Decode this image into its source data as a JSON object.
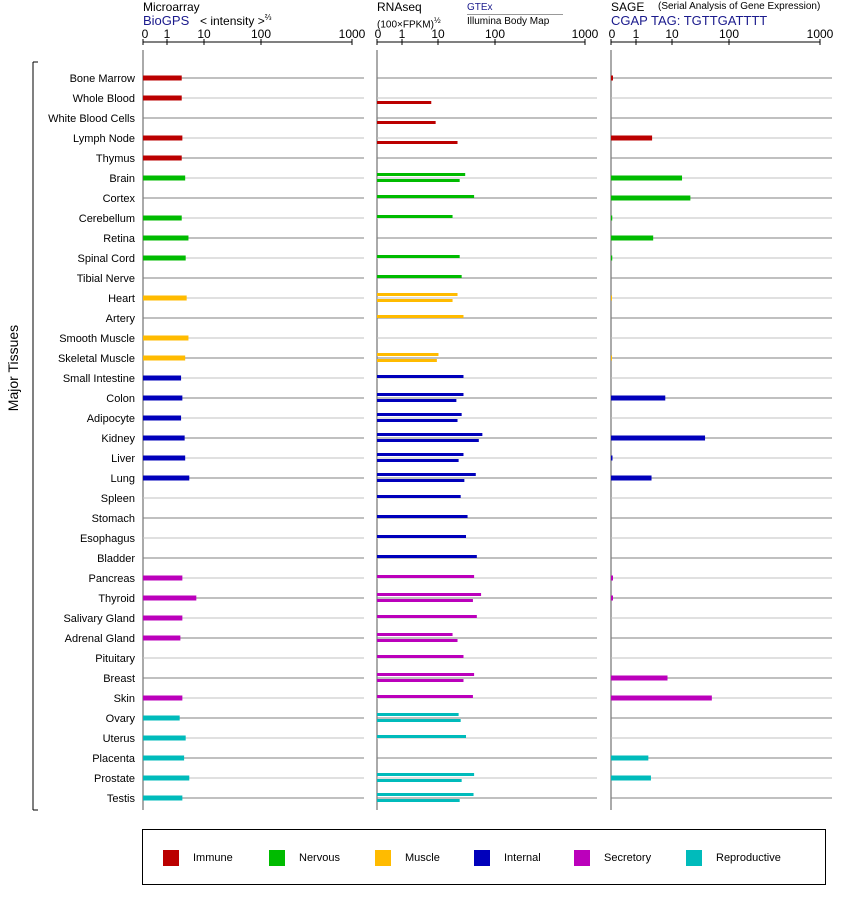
{
  "headers": {
    "microarray": {
      "title": "Microarray",
      "source": "BioGPS",
      "unit_prefix": "< intensity >",
      "unit_exp": "⅔"
    },
    "rnaseq": {
      "title": "RNAseq",
      "unit_prefix": "(100×FPKM)",
      "unit_exp": "½",
      "source_top": "GTEx",
      "source_bottom": "Illumina Body Map"
    },
    "sage": {
      "title": "SAGE",
      "subtitle": "(Serial Analysis of Gene Expression)",
      "tag": "CGAP TAG: TGTTGATTTT"
    }
  },
  "side_label": "Major Tissues",
  "colors": {
    "Immune": "#bb0000",
    "Nervous": "#00bb00",
    "Muscle": "#ffbb00",
    "Internal": "#0000bb",
    "Secretory": "#bb00bb",
    "Reproductive": "#00bbbb"
  },
  "legend": [
    {
      "label": "Immune",
      "color": "#bb0000"
    },
    {
      "label": "Nervous",
      "color": "#00bb00"
    },
    {
      "label": "Muscle",
      "color": "#ffbb00"
    },
    {
      "label": "Internal",
      "color": "#0000bb"
    },
    {
      "label": "Secretory",
      "color": "#bb00bb"
    },
    {
      "label": "Reproductive",
      "color": "#00bbbb"
    }
  ],
  "chart_data": {
    "type": "bar",
    "orientation": "horizontal",
    "axis_ticks": [
      "0",
      "1",
      "10",
      "100",
      "1000"
    ],
    "axis_tick_values": [
      0,
      1,
      10,
      100,
      1000
    ],
    "xlim": [
      0,
      1000
    ],
    "tissues": [
      {
        "name": "Bone Marrow",
        "group": "Immune",
        "microarray": 2.5,
        "rnaseq": [],
        "sage": 0.08
      },
      {
        "name": "Whole Blood",
        "group": "Immune",
        "microarray": 2.5,
        "rnaseq": [
          6.5
        ],
        "sage": null
      },
      {
        "name": "White Blood Cells",
        "group": "Immune",
        "microarray": null,
        "rnaseq": [
          8.6
        ],
        "sage": null
      },
      {
        "name": "Lymph Node",
        "group": "Immune",
        "microarray": 2.6,
        "rnaseq": [
          22
        ],
        "sage": 2.8
      },
      {
        "name": "Thymus",
        "group": "Immune",
        "microarray": 2.5,
        "rnaseq": [],
        "sage": null
      },
      {
        "name": "Brain",
        "group": "Nervous",
        "microarray": 3.1,
        "rnaseq": [
          30,
          24
        ],
        "sage": 15
      },
      {
        "name": "Cortex",
        "group": "Nervous",
        "microarray": null,
        "rnaseq": [
          43
        ],
        "sage": 21
      },
      {
        "name": "Cerebellum",
        "group": "Nervous",
        "microarray": 2.5,
        "rnaseq": [
          18
        ],
        "sage": 0.05
      },
      {
        "name": "Retina",
        "group": "Nervous",
        "microarray": 3.8,
        "rnaseq": [],
        "sage": 3.0
      },
      {
        "name": "Spinal Cord",
        "group": "Nervous",
        "microarray": 3.2,
        "rnaseq": [
          24
        ],
        "sage": 0.05
      },
      {
        "name": "Tibial Nerve",
        "group": "Nervous",
        "microarray": null,
        "rnaseq": [
          26
        ],
        "sage": null
      },
      {
        "name": "Heart",
        "group": "Muscle",
        "microarray": 3.4,
        "rnaseq": [
          22,
          18
        ],
        "sage": 0.03
      },
      {
        "name": "Artery",
        "group": "Muscle",
        "microarray": null,
        "rnaseq": [
          28
        ],
        "sage": null
      },
      {
        "name": "Smooth Muscle",
        "group": "Muscle",
        "microarray": 3.8,
        "rnaseq": [],
        "sage": null
      },
      {
        "name": "Skeletal Muscle",
        "group": "Muscle",
        "microarray": 3.1,
        "rnaseq": [
          10.2,
          9.3
        ],
        "sage": 0.03
      },
      {
        "name": "Small Intestine",
        "group": "Internal",
        "microarray": 2.4,
        "rnaseq": [
          28
        ],
        "sage": null
      },
      {
        "name": "Colon",
        "group": "Internal",
        "microarray": 2.6,
        "rnaseq": [
          28,
          21
        ],
        "sage": 6.5
      },
      {
        "name": "Adipocyte",
        "group": "Internal",
        "microarray": 2.4,
        "rnaseq": [
          26,
          22
        ],
        "sage": null
      },
      {
        "name": "Kidney",
        "group": "Internal",
        "microarray": 3.0,
        "rnaseq": [
          60,
          52
        ],
        "sage": 38
      },
      {
        "name": "Liver",
        "group": "Internal",
        "microarray": 3.1,
        "rnaseq": [
          28,
          23
        ],
        "sage": 0.06
      },
      {
        "name": "Lung",
        "group": "Internal",
        "microarray": 4.0,
        "rnaseq": [
          46,
          29
        ],
        "sage": 2.7
      },
      {
        "name": "Spleen",
        "group": "Internal",
        "microarray": null,
        "rnaseq": [
          25
        ],
        "sage": null
      },
      {
        "name": "Stomach",
        "group": "Internal",
        "microarray": null,
        "rnaseq": [
          33
        ],
        "sage": null
      },
      {
        "name": "Esophagus",
        "group": "Internal",
        "microarray": null,
        "rnaseq": [
          31
        ],
        "sage": null
      },
      {
        "name": "Bladder",
        "group": "Internal",
        "microarray": null,
        "rnaseq": [
          48
        ],
        "sage": null
      },
      {
        "name": "Pancreas",
        "group": "Secretory",
        "microarray": 2.6,
        "rnaseq": [
          43
        ],
        "sage": 0.08
      },
      {
        "name": "Thyroid",
        "group": "Secretory",
        "microarray": 6.2,
        "rnaseq": [
          57,
          41
        ],
        "sage": 0.08
      },
      {
        "name": "Salivary Gland",
        "group": "Secretory",
        "microarray": 2.6,
        "rnaseq": [
          48
        ],
        "sage": null
      },
      {
        "name": "Adrenal Gland",
        "group": "Secretory",
        "microarray": 2.3,
        "rnaseq": [
          18,
          22
        ],
        "sage": null
      },
      {
        "name": "Pituitary",
        "group": "Secretory",
        "microarray": null,
        "rnaseq": [
          28
        ],
        "sage": null
      },
      {
        "name": "Breast",
        "group": "Secretory",
        "microarray": null,
        "rnaseq": [
          43,
          28
        ],
        "sage": 7.5
      },
      {
        "name": "Skin",
        "group": "Secretory",
        "microarray": 2.6,
        "rnaseq": [
          41
        ],
        "sage": 50
      },
      {
        "name": "Ovary",
        "group": "Reproductive",
        "microarray": 2.2,
        "rnaseq": [
          23,
          25
        ],
        "sage": null
      },
      {
        "name": "Uterus",
        "group": "Reproductive",
        "microarray": 3.2,
        "rnaseq": [
          31
        ],
        "sage": null
      },
      {
        "name": "Placenta",
        "group": "Reproductive",
        "microarray": 2.9,
        "rnaseq": [],
        "sage": 2.2
      },
      {
        "name": "Prostate",
        "group": "Reproductive",
        "microarray": 4.0,
        "rnaseq": [
          43,
          26
        ],
        "sage": 2.6
      },
      {
        "name": "Testis",
        "group": "Reproductive",
        "microarray": 2.6,
        "rnaseq": [
          42,
          24
        ],
        "sage": null
      }
    ]
  }
}
